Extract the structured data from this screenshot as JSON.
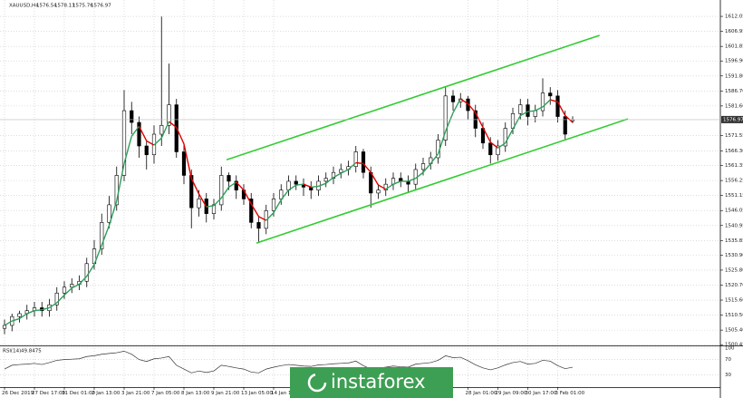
{
  "chart_data": {
    "type": "candlestick",
    "symbol": "XAUUSD,H4",
    "categories": [
      "26 Dec 2019",
      null,
      null,
      null,
      "27 Dec 17:00",
      null,
      null,
      null,
      "31 Dec 01:00",
      null,
      null,
      null,
      "2 Jan 13:00",
      null,
      null,
      null,
      "3 Jan 21:00",
      null,
      null,
      null,
      "7 Jan 05:00",
      null,
      null,
      null,
      "8 Jan 13:00",
      null,
      null,
      null,
      "9 Jan 21:00",
      null,
      null,
      null,
      "13 Jan 05:00",
      null,
      null,
      null,
      "14 Jan 13:00",
      null,
      null,
      null,
      null,
      null,
      null,
      null,
      null,
      null,
      null,
      null,
      null,
      null,
      null,
      null,
      null,
      null,
      null,
      null,
      null,
      null,
      null,
      null,
      null,
      null,
      "28 Jan 01:00",
      null,
      null,
      null,
      "29 Jan 09:00",
      null,
      null,
      null,
      "30 Jan 17:00",
      null,
      null,
      null,
      "3 Feb 01:00",
      null,
      null
    ],
    "open": [
      1506,
      1507,
      1510,
      1511,
      1512,
      1513,
      1512,
      1514,
      1518,
      1520,
      1521,
      1522,
      1528,
      1533,
      1542,
      1548,
      1558,
      1580,
      1576,
      1568,
      1565,
      1572,
      1575,
      1582,
      1566,
      1558,
      1547,
      1550,
      1545,
      1548,
      1558,
      1556,
      1553,
      1550,
      1542,
      1540,
      1546,
      1550,
      1553,
      1556,
      1555,
      1554,
      1553,
      1556,
      1557,
      1559,
      1560,
      1561,
      1566,
      1559,
      1552,
      1553,
      1555,
      1557,
      1556,
      1555,
      1560,
      1562,
      1564,
      1570,
      1585,
      1583,
      1584,
      1580,
      1574,
      1569,
      1565,
      1568,
      1574,
      1579,
      1582,
      1578,
      1580,
      1586,
      1585,
      1578,
      1576.54
    ],
    "high": [
      1509,
      1511,
      1512,
      1514,
      1515,
      1515,
      1516,
      1520,
      1522,
      1523,
      1524,
      1530,
      1536,
      1545,
      1551,
      1561,
      1587,
      1583,
      1578,
      1570,
      1575,
      1612,
      1596,
      1584,
      1569,
      1560,
      1553,
      1552,
      1550,
      1561,
      1559,
      1558,
      1555,
      1552,
      1544,
      1548,
      1552,
      1555,
      1558,
      1558,
      1557,
      1556,
      1558,
      1559,
      1561,
      1562,
      1563,
      1568,
      1567,
      1561,
      1555,
      1557,
      1559,
      1559,
      1558,
      1562,
      1564,
      1566,
      1572,
      1588,
      1587,
      1586,
      1585,
      1582,
      1576,
      1571,
      1570,
      1576,
      1581,
      1584,
      1584,
      1582,
      1591,
      1588,
      1587,
      1580,
      1578.11
    ],
    "low": [
      1504,
      1505,
      1508,
      1509,
      1510,
      1510,
      1510,
      1512,
      1516,
      1518,
      1519,
      1520,
      1526,
      1531,
      1540,
      1546,
      1556,
      1572,
      1564,
      1560,
      1562,
      1568,
      1572,
      1564,
      1555,
      1540,
      1544,
      1542,
      1543,
      1546,
      1553,
      1550,
      1548,
      1540,
      1535,
      1538,
      1544,
      1548,
      1551,
      1553,
      1551,
      1550,
      1551,
      1554,
      1555,
      1557,
      1558,
      1559,
      1557,
      1547,
      1550,
      1551,
      1553,
      1554,
      1552,
      1553,
      1558,
      1560,
      1562,
      1568,
      1580,
      1581,
      1577,
      1571,
      1567,
      1562,
      1563,
      1566,
      1572,
      1577,
      1575,
      1576,
      1578,
      1582,
      1576,
      1570,
      1575.76
    ],
    "close": [
      1507,
      1510,
      1511,
      1512,
      1513,
      1512,
      1514,
      1518,
      1520,
      1521,
      1522,
      1528,
      1533,
      1542,
      1548,
      1558,
      1580,
      1576,
      1568,
      1565,
      1572,
      1575,
      1582,
      1566,
      1558,
      1547,
      1550,
      1545,
      1548,
      1558,
      1556,
      1553,
      1550,
      1542,
      1540,
      1546,
      1550,
      1553,
      1556,
      1555,
      1554,
      1553,
      1556,
      1557,
      1559,
      1560,
      1561,
      1566,
      1559,
      1552,
      1553,
      1555,
      1557,
      1556,
      1555,
      1560,
      1562,
      1564,
      1570,
      1585,
      1583,
      1584,
      1580,
      1574,
      1569,
      1565,
      1568,
      1574,
      1579,
      1582,
      1578,
      1580,
      1586,
      1585,
      1578,
      1572,
      1576.97
    ],
    "indicator": {
      "rising_color": "#2e9e5a",
      "falling_color": "#e00000",
      "values": [
        1507,
        1508.5,
        1509.3,
        1511,
        1512,
        1512.3,
        1513,
        1514.7,
        1517.3,
        1519.7,
        1521,
        1523.7,
        1527.7,
        1534.3,
        1541,
        1549.3,
        1562,
        1571.3,
        1574.7,
        1569.7,
        1568.3,
        1570.7,
        1576.3,
        1574.3,
        1568.7,
        1557,
        1551.7,
        1547.3,
        1547.7,
        1550.3,
        1554,
        1555.7,
        1553,
        1548.3,
        1544,
        1542.7,
        1545.3,
        1549.7,
        1553,
        1554.7,
        1555,
        1554,
        1554.3,
        1555.3,
        1557.3,
        1558.7,
        1560,
        1562.3,
        1562,
        1559,
        1554.7,
        1553.3,
        1555,
        1556,
        1556,
        1557,
        1559,
        1562,
        1565.3,
        1573,
        1579.3,
        1584,
        1582.3,
        1579.3,
        1574.3,
        1569.3,
        1567.3,
        1569,
        1573.7,
        1578.3,
        1579.7,
        1580,
        1581.3,
        1583.7,
        1583,
        1578.3,
        1576
      ]
    },
    "channel": {
      "color": "#33cc33",
      "lines": [
        {
          "x": [
            29.7,
            79.6
          ],
          "y": [
            1563.3,
            1605.6
          ]
        },
        {
          "x": [
            33.7,
            83.4
          ],
          "y": [
            1535.0,
            1577.2
          ]
        }
      ]
    },
    "ylim": [
      1500.2,
      1617.0
    ],
    "yticks": [
      {
        "value": 1500.45,
        "label": "1500.45"
      },
      {
        "value": 1505.4,
        "label": "1505.40"
      },
      {
        "value": 1510.5,
        "label": "1510.50"
      },
      {
        "value": 1515.6,
        "label": "1515.60"
      },
      {
        "value": 1520.7,
        "label": "1520.70"
      },
      {
        "value": 1525.8,
        "label": "1525.80"
      },
      {
        "value": 1530.9,
        "label": "1530.90"
      },
      1535.85,
      1540.95,
      1546.05,
      1551.15,
      1556.25,
      1561.35,
      {
        "value": 1566.3,
        "label": "1566.30"
      },
      1571.55,
      {
        "value": 1581.6,
        "label": "1581.60"
      },
      {
        "value": 1586.7,
        "label": "1586.70"
      },
      {
        "value": 1591.8,
        "label": "1591.80"
      },
      {
        "value": 1596.9,
        "label": "1596.90"
      },
      1601.85,
      1606.95,
      1612.05
    ],
    "grid": true,
    "rsi": {
      "title": "RSI(14)",
      "color": "#333333",
      "ylim": [
        0,
        100
      ],
      "yticks": [
        30,
        70,
        100
      ],
      "values": [
        45,
        55,
        57,
        58,
        60,
        57,
        62,
        68,
        70,
        71,
        72,
        78,
        80,
        84,
        86,
        88,
        92,
        84,
        70,
        65,
        72,
        74,
        78,
        55,
        45,
        35,
        40,
        36,
        40,
        55,
        52,
        48,
        45,
        37,
        35,
        45,
        50,
        54,
        57,
        55,
        53,
        52,
        56,
        57,
        59,
        60,
        61,
        66,
        54,
        45,
        47,
        50,
        53,
        51,
        50,
        58,
        60,
        62,
        68,
        80,
        75,
        76,
        67,
        56,
        48,
        43,
        48,
        56,
        62,
        65,
        58,
        60,
        68,
        66,
        54,
        46,
        49.8475
      ]
    },
    "watermark": "instaforex",
    "watermark_color": "#3d9f53"
  }
}
